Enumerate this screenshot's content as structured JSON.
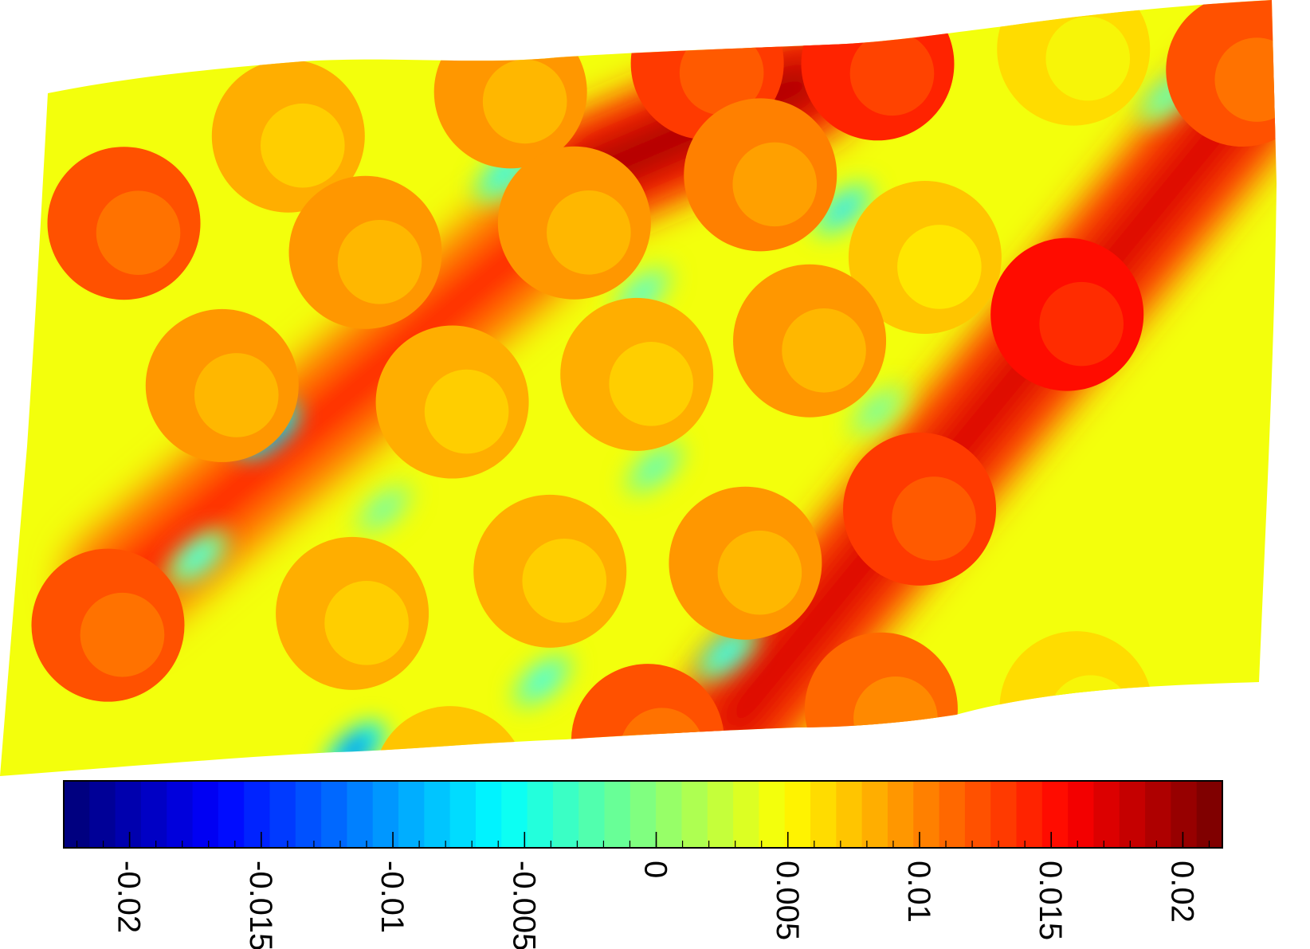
{
  "chart_data": {
    "type": "heatmap",
    "title": "",
    "xlabel": "",
    "ylabel": "",
    "colormap": "jet",
    "colorbar": {
      "orientation": "horizontal",
      "placement": "bottom",
      "range": [
        -0.0225,
        0.0215
      ],
      "ticks": [
        -0.02,
        -0.015,
        -0.01,
        -0.005,
        0,
        0.005,
        0.01,
        0.015,
        0.02
      ],
      "tick_labels": [
        "-0.02",
        "-0.015",
        "-0.01",
        "-0.005",
        "0",
        "0.005",
        "0.01",
        "0.015",
        "0.02"
      ],
      "tick_label_rotation": "90-clockwise",
      "minor_tick_step": 0.001,
      "levels": 45
    },
    "field": {
      "background_value": 0.004,
      "inclusions": [
        {
          "u": 0.07,
          "v": 0.2,
          "value": 0.012
        },
        {
          "u": 0.2,
          "v": 0.09,
          "value": 0.008
        },
        {
          "u": 0.38,
          "v": 0.05,
          "value": 0.009
        },
        {
          "u": 0.54,
          "v": 0.03,
          "value": 0.013
        },
        {
          "u": 0.68,
          "v": 0.05,
          "value": 0.014
        },
        {
          "u": 0.84,
          "v": 0.05,
          "value": 0.006
        },
        {
          "u": 0.98,
          "v": 0.1,
          "value": 0.012
        },
        {
          "u": 0.16,
          "v": 0.45,
          "value": 0.009
        },
        {
          "u": 0.27,
          "v": 0.27,
          "value": 0.009
        },
        {
          "u": 0.44,
          "v": 0.25,
          "value": 0.009
        },
        {
          "u": 0.59,
          "v": 0.2,
          "value": 0.01
        },
        {
          "u": 0.73,
          "v": 0.34,
          "value": 0.007
        },
        {
          "u": 0.35,
          "v": 0.5,
          "value": 0.008
        },
        {
          "u": 0.5,
          "v": 0.48,
          "value": 0.008
        },
        {
          "u": 0.64,
          "v": 0.45,
          "value": 0.009
        },
        {
          "u": 0.85,
          "v": 0.44,
          "value": 0.015
        },
        {
          "u": 0.08,
          "v": 0.79,
          "value": 0.012
        },
        {
          "u": 0.28,
          "v": 0.8,
          "value": 0.008
        },
        {
          "u": 0.44,
          "v": 0.76,
          "value": 0.008
        },
        {
          "u": 0.6,
          "v": 0.77,
          "value": 0.009
        },
        {
          "u": 0.74,
          "v": 0.71,
          "value": 0.013
        },
        {
          "u": 0.53,
          "v": 1.02,
          "value": 0.012
        },
        {
          "u": 0.72,
          "v": 1.0,
          "value": 0.011
        },
        {
          "u": 0.88,
          "v": 1.02,
          "value": 0.006
        },
        {
          "u": 0.37,
          "v": 1.06,
          "value": 0.007
        }
      ],
      "high_bands": [
        {
          "from_uv": [
            0.45,
            0.18
          ],
          "to_uv": [
            0.62,
            0.07
          ],
          "value": 0.019
        },
        {
          "from_uv": [
            0.6,
            1.0
          ],
          "to_uv": [
            0.98,
            0.15
          ],
          "value": 0.017
        },
        {
          "from_uv": [
            0.09,
            0.73
          ],
          "to_uv": [
            0.4,
            0.28
          ],
          "value": 0.014
        }
      ],
      "low_spots": [
        {
          "u": 0.15,
          "v": 0.7,
          "value": -0.005
        },
        {
          "u": 0.2,
          "v": 0.52,
          "value": -0.015
        },
        {
          "u": 0.29,
          "v": 1.0,
          "value": -0.017
        },
        {
          "u": 0.38,
          "v": 0.17,
          "value": -0.006
        },
        {
          "u": 0.5,
          "v": 0.36,
          "value": -0.004
        },
        {
          "u": 0.52,
          "v": 0.62,
          "value": -0.003
        },
        {
          "u": 0.66,
          "v": 0.26,
          "value": -0.007
        },
        {
          "u": 0.59,
          "v": 0.9,
          "value": -0.006
        },
        {
          "u": 0.44,
          "v": 0.92,
          "value": -0.005
        },
        {
          "u": 0.92,
          "v": 0.13,
          "value": -0.003
        },
        {
          "u": 0.7,
          "v": 0.56,
          "value": -0.002
        },
        {
          "u": 0.3,
          "v": 0.65,
          "value": -0.002
        }
      ]
    }
  }
}
